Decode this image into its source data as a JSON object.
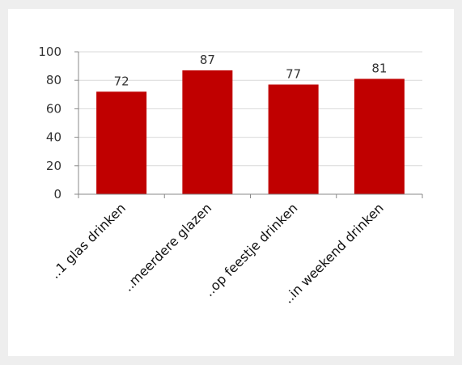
{
  "chart_data": {
    "type": "bar",
    "title": "",
    "xlabel": "",
    "ylabel": "",
    "categories": [
      "..1 glas drinken",
      "..meerdere glazen",
      "..op feestje drinken",
      "..in weekend drinken"
    ],
    "values": [
      72,
      87,
      77,
      81
    ],
    "ylim": [
      0,
      100
    ],
    "yticks": [
      0,
      20,
      40,
      60,
      80,
      100
    ],
    "grid": true,
    "legend": "none",
    "bar_color": "#c00000",
    "grid_color": "#d9d9d9",
    "axis_color": "#888888"
  }
}
